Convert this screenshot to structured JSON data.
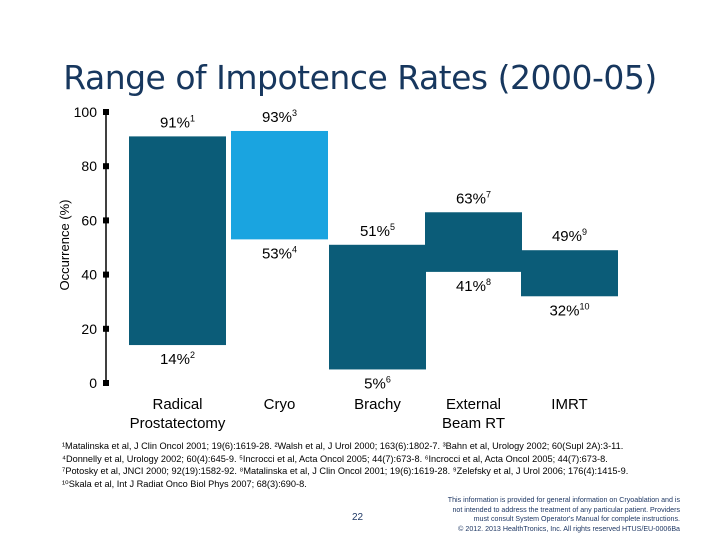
{
  "slide": {
    "title": "Range of Impotence Rates (2000-05)",
    "page_number": "22",
    "disclaimer": [
      "This information is provided for general information on Cryoablation and is",
      "not intended to address the treatment of any particular patient. Providers",
      "must consult System Operator's Manual for complete instructions.",
      "© 2012. 2013 HealthTronics, Inc. All rights reserved HTUS/EU-0006Ba"
    ],
    "footnotes": [
      "¹Matalinska et al, J Clin Oncol 2001; 19(6):1619-28. ²Walsh et al, J Urol 2000; 163(6):1802-7. ³Bahn et al, Urology 2002; 60(Supl 2A):3-11.",
      "⁴Donnelly et al, Urology 2002; 60(4):645-9. ⁵Incrocci et al, Acta Oncol 2005; 44(7):673-8. ⁶Incrocci et al, Acta Oncol 2005; 44(7):673-8.",
      "⁷Potosky et al, JNCI 2000; 92(19):1582-92. ⁸Matalinska et al, J Clin Oncol 2001; 19(6):1619-28. ⁹Zelefsky et al, J Urol 2006; 176(4):1415-9.",
      "¹⁰Skala et al, Int J Radiat Onco Biol Phys 2007; 68(3):690-8."
    ]
  },
  "chart_data": {
    "type": "bar",
    "subtype": "floating-range",
    "title": "Range of Impotence Rates (2000-05)",
    "ylabel": "Occurrence (%)",
    "ylim": [
      0,
      100
    ],
    "yticks": [
      "0",
      "20",
      "40",
      "60",
      "80",
      "100"
    ],
    "categories": [
      "Radical Prostatectomy",
      "Cryo",
      "Brachy",
      "External Beam RT",
      "IMRT"
    ],
    "category_lines": [
      [
        "Radical",
        "Prostatectomy"
      ],
      [
        "Cryo"
      ],
      [
        "Brachy"
      ],
      [
        "External",
        "Beam RT"
      ],
      [
        "IMRT"
      ]
    ],
    "ranges": [
      {
        "low": 14,
        "high": 91,
        "low_label": "14%",
        "low_ref": "2",
        "high_label": "91%",
        "high_ref": "1",
        "color": "#0b5c78"
      },
      {
        "low": 53,
        "high": 93,
        "low_label": "53%",
        "low_ref": "4",
        "high_label": "93%",
        "high_ref": "3",
        "color": "#1aa4e0"
      },
      {
        "low": 5,
        "high": 51,
        "low_label": "5%",
        "low_ref": "6",
        "high_label": "51%",
        "high_ref": "5",
        "color": "#0b5c78"
      },
      {
        "low": 41,
        "high": 63,
        "low_label": "41%",
        "low_ref": "8",
        "high_label": "63%",
        "high_ref": "7",
        "color": "#0b5c78"
      },
      {
        "low": 32,
        "high": 49,
        "low_label": "32%",
        "low_ref": "10",
        "high_label": "49%",
        "high_ref": "9",
        "color": "#0b5c78"
      }
    ]
  }
}
